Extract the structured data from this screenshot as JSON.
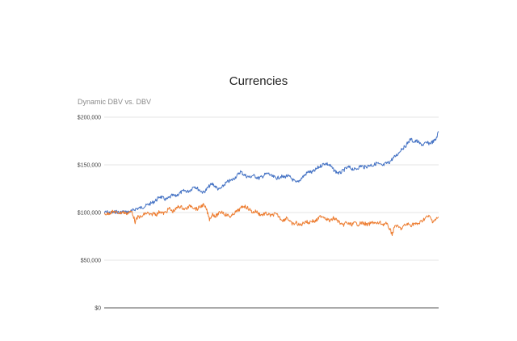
{
  "colors": {
    "series_1": "#4472c4",
    "series_2": "#ed7d31"
  },
  "chart_data": {
    "type": "line",
    "title": "Currencies",
    "subtitle": "Dynamic DBV vs. DBV",
    "xlabel": "",
    "ylabel": "",
    "ylim": [
      0,
      200000
    ],
    "y_ticks": [
      "$0",
      "$50,000",
      "$100,000",
      "$150,000",
      "$200,000"
    ],
    "grid": true,
    "legend": "none",
    "series": [
      {
        "values": [
          100000,
          100500,
          99600,
          100100,
          100900,
          99800,
          101000,
          100300,
          100800,
          101600,
          103600,
          104400,
          105200,
          106400,
          108000,
          109500,
          111200,
          113500,
          117000,
          115000,
          113500,
          115500,
          118000,
          117000,
          119500,
          121500,
          123000,
          122000,
          124000,
          128000,
          125500,
          123000,
          121000,
          124000,
          128000,
          130000,
          127000,
          124000,
          126000,
          130000,
          132500,
          133500,
          136000,
          139000,
          143000,
          140000,
          138000,
          137000,
          139000,
          137500,
          136000,
          137500,
          140000,
          141000,
          138000,
          137000,
          136000,
          138000,
          137000,
          138500,
          137000,
          134000,
          131000,
          133500,
          137000,
          140000,
          143000,
          142000,
          144000,
          147000,
          149000,
          151500,
          151000,
          149000,
          145000,
          142500,
          141000,
          143500,
          146000,
          147500,
          146000,
          145000,
          147000,
          149000,
          147500,
          148500,
          150000,
          149500,
          152000,
          150000,
          149000,
          151500,
          152500,
          156000,
          159000,
          162000,
          167000,
          168500,
          173000,
          177000,
          174000,
          175000,
          172000,
          171000,
          173000,
          172500,
          174000,
          176000,
          185000
        ]
      },
      {
        "values": [
          99000,
          98500,
          100000,
          101000,
          100000,
          99500,
          100500,
          99000,
          100000,
          101000,
          90000,
          96000,
          95000,
          98500,
          99500,
          97000,
          99500,
          98000,
          101500,
          99000,
          100500,
          104500,
          101000,
          103000,
          106500,
          105500,
          103500,
          105000,
          107500,
          105000,
          103500,
          106000,
          108000,
          103500,
          93000,
          98500,
          96000,
          99000,
          101000,
          98000,
          97000,
          95500,
          99500,
          101500,
          104000,
          107000,
          105500,
          103000,
          100000,
          101500,
          98500,
          97500,
          99000,
          98000,
          96500,
          98500,
          97000,
          93500,
          91500,
          95500,
          90000,
          87500,
          89500,
          86500,
          88000,
          91000,
          89000,
          91500,
          90500,
          93000,
          96500,
          95500,
          93000,
          91000,
          94000,
          92500,
          89500,
          86000,
          89500,
          88000,
          87500,
          89000,
          87500,
          89000,
          88500,
          87000,
          88500,
          90000,
          88000,
          89500,
          87500,
          88500,
          84000,
          77500,
          87000,
          84500,
          83000,
          86500,
          88000,
          86500,
          88500,
          87500,
          89500,
          92500,
          95000,
          96000,
          91000,
          92500,
          95000
        ]
      }
    ]
  }
}
